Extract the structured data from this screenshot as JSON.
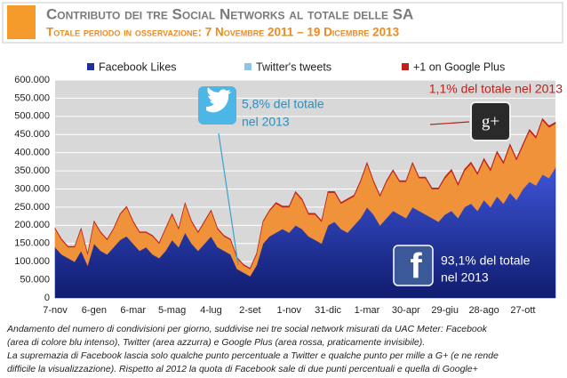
{
  "chart_data": {
    "type": "stacked-area",
    "title": "Contributo dei tre Social Networks al totale delle SA",
    "subtitle": "Totale periodo in osservazione: 7 Novembre 2011 – 19 Dicembre 2013",
    "categories": [
      "7-nov",
      null,
      null,
      null,
      null,
      null,
      "6-gen",
      null,
      null,
      null,
      null,
      null,
      "6-mar",
      null,
      null,
      null,
      null,
      null,
      "5-mag",
      null,
      null,
      null,
      null,
      null,
      "4-lug",
      null,
      null,
      null,
      null,
      null,
      "2-set",
      null,
      null,
      null,
      null,
      null,
      "1-nov",
      null,
      null,
      null,
      null,
      null,
      "31-dic",
      null,
      null,
      null,
      null,
      null,
      "1-mar",
      null,
      null,
      null,
      null,
      null,
      "30-apr",
      null,
      null,
      null,
      null,
      null,
      "29-giu",
      null,
      null,
      null,
      null,
      null,
      "28-ago",
      null,
      null,
      null,
      null,
      null,
      "27-ott",
      null,
      null,
      null,
      null,
      null
    ],
    "series": [
      {
        "name": "Facebook Likes",
        "color": "#1f2f9e",
        "values": [
          140000,
          120000,
          110000,
          100000,
          130000,
          90000,
          150000,
          130000,
          120000,
          140000,
          160000,
          170000,
          150000,
          130000,
          140000,
          120000,
          110000,
          130000,
          160000,
          140000,
          180000,
          150000,
          130000,
          150000,
          170000,
          140000,
          130000,
          120000,
          80000,
          70000,
          60000,
          90000,
          150000,
          170000,
          180000,
          190000,
          180000,
          200000,
          190000,
          170000,
          160000,
          150000,
          200000,
          210000,
          190000,
          180000,
          200000,
          220000,
          250000,
          230000,
          200000,
          220000,
          240000,
          230000,
          220000,
          250000,
          240000,
          230000,
          220000,
          210000,
          230000,
          240000,
          220000,
          250000,
          260000,
          240000,
          270000,
          250000,
          280000,
          260000,
          290000,
          270000,
          300000,
          320000,
          310000,
          340000,
          330000,
          360000
        ]
      },
      {
        "name": "Twitter's tweets",
        "color": "#f0923a",
        "legend_color": "#8ec3ea",
        "values": [
          50000,
          40000,
          30000,
          40000,
          60000,
          30000,
          60000,
          50000,
          40000,
          50000,
          70000,
          80000,
          60000,
          50000,
          40000,
          50000,
          40000,
          60000,
          70000,
          50000,
          80000,
          60000,
          50000,
          60000,
          70000,
          50000,
          40000,
          40000,
          30000,
          20000,
          20000,
          30000,
          60000,
          70000,
          80000,
          60000,
          70000,
          90000,
          80000,
          60000,
          70000,
          60000,
          90000,
          80000,
          70000,
          90000,
          80000,
          100000,
          120000,
          90000,
          80000,
          100000,
          110000,
          90000,
          100000,
          120000,
          90000,
          100000,
          80000,
          90000,
          100000,
          110000,
          90000,
          100000,
          110000,
          100000,
          110000,
          100000,
          120000,
          110000,
          130000,
          110000,
          120000,
          140000,
          130000,
          150000,
          140000,
          120000
        ]
      },
      {
        "name": "+1 on Google Plus",
        "color": "#c0201a",
        "values": [
          2000,
          2000,
          2000,
          2000,
          2000,
          2000,
          2000,
          2000,
          2000,
          2000,
          2000,
          2000,
          2000,
          2000,
          2000,
          2000,
          2000,
          2000,
          2000,
          2000,
          2000,
          2000,
          2000,
          2000,
          2000,
          2000,
          2000,
          2000,
          2000,
          2000,
          2000,
          2000,
          2000,
          2000,
          3000,
          3000,
          3000,
          3000,
          3000,
          3000,
          3000,
          3000,
          3000,
          3000,
          3000,
          3000,
          3000,
          3000,
          3000,
          3000,
          3000,
          3000,
          3000,
          3000,
          3000,
          3000,
          3000,
          3000,
          3000,
          3000,
          4000,
          4000,
          4000,
          4000,
          4000,
          4000,
          4000,
          4000,
          4000,
          4000,
          4000,
          4000,
          4000,
          4000,
          4000,
          4000,
          4000,
          4000
        ]
      }
    ],
    "ylim": [
      0,
      600000
    ],
    "yticks": [
      {
        "value": 0,
        "label": "0"
      },
      {
        "value": 50000,
        "label": "50.000"
      },
      {
        "value": 100000,
        "label": "100.000"
      },
      {
        "value": 150000,
        "label": "150.000"
      },
      {
        "value": 200000,
        "label": "200.000"
      },
      {
        "value": 250000,
        "label": "250.000"
      },
      {
        "value": 300000,
        "label": "300.000"
      },
      {
        "value": 350000,
        "label": "350.000"
      },
      {
        "value": 400000,
        "label": "400.000"
      },
      {
        "value": 450000,
        "label": "450.000"
      },
      {
        "value": 500000,
        "label": "500.000"
      },
      {
        "value": 550000,
        "label": "550.000"
      },
      {
        "value": 600000,
        "label": "600.000"
      }
    ],
    "grid": true,
    "annotations": [
      "5,8% del totale",
      "nel 2013",
      "1,1% del totale nel 2013",
      "93,1% del totale",
      "nel 2013"
    ],
    "caption": [
      "Andamento del numero di condivisioni per giorno, suddivise nei tre social network misurati da UAC Meter: Facebook",
      "(area di colore blu intenso), Twitter (area azzurra) e Google Plus (area rossa, praticamente invisibile).",
      "La supremazia di Facebook lascia solo qualche punto percentuale a Twitter e qualche punto per mille a G+ (e ne rende",
      "difficile la visualizzazione). Rispetto al 2012 la quota di Facebook sale di due punti percentuali e quella di Google+"
    ]
  }
}
